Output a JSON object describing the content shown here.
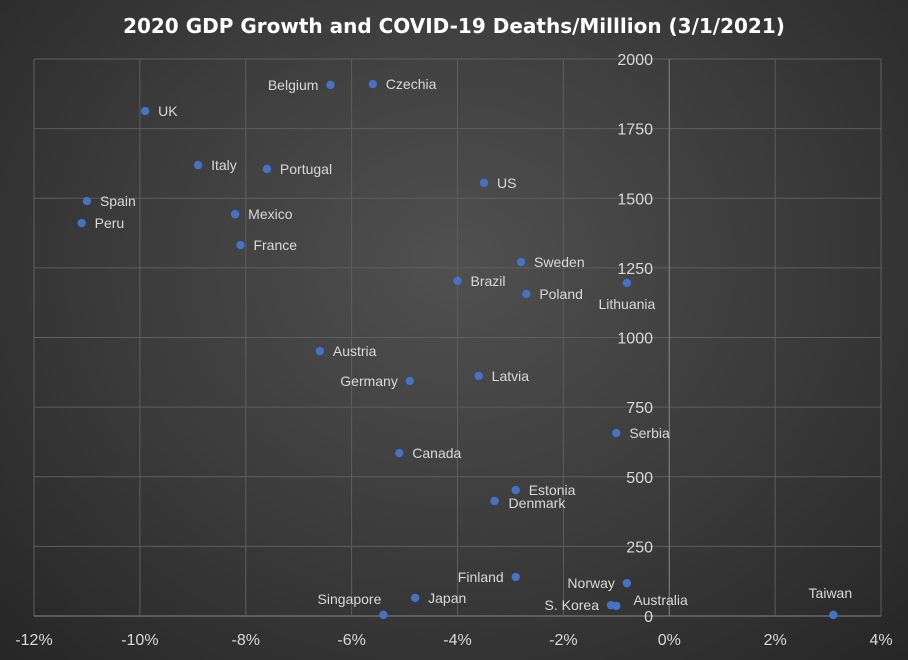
{
  "chart_data": {
    "type": "scatter",
    "title": "2020 GDP Growth and COVID-19 Deaths/Milllion (3/1/2021)",
    "xlabel": "",
    "ylabel": "",
    "xlim": [
      -12,
      4
    ],
    "ylim": [
      0,
      2000
    ],
    "x_ticks": [
      "-12%",
      "-10%",
      "-8%",
      "-6%",
      "-4%",
      "-2%",
      "0%",
      "2%",
      "4%"
    ],
    "y_ticks": [
      "0",
      "250",
      "500",
      "750",
      "1000",
      "1250",
      "1500",
      "1750",
      "2000"
    ],
    "grid": true,
    "marker_color": "#4472C4",
    "points": [
      {
        "label": "UK",
        "x": -9.9,
        "y": 1813
      },
      {
        "label": "Belgium",
        "x": -6.4,
        "y": 1907
      },
      {
        "label": "Czechia",
        "x": -5.6,
        "y": 1910
      },
      {
        "label": "Italy",
        "x": -8.9,
        "y": 1619
      },
      {
        "label": "Portugal",
        "x": -7.6,
        "y": 1605
      },
      {
        "label": "US",
        "x": -3.5,
        "y": 1555
      },
      {
        "label": "Spain",
        "x": -11.0,
        "y": 1490
      },
      {
        "label": "Peru",
        "x": -11.1,
        "y": 1411
      },
      {
        "label": "Mexico",
        "x": -8.2,
        "y": 1443
      },
      {
        "label": "France",
        "x": -8.1,
        "y": 1332
      },
      {
        "label": "Sweden",
        "x": -2.8,
        "y": 1271
      },
      {
        "label": "Brazil",
        "x": -4.0,
        "y": 1203
      },
      {
        "label": "Poland",
        "x": -2.7,
        "y": 1156
      },
      {
        "label": "Lithuania",
        "x": -0.8,
        "y": 1196
      },
      {
        "label": "Austria",
        "x": -6.6,
        "y": 951
      },
      {
        "label": "Germany",
        "x": -4.9,
        "y": 844
      },
      {
        "label": "Latvia",
        "x": -3.6,
        "y": 862
      },
      {
        "label": "Serbia",
        "x": -1.0,
        "y": 657
      },
      {
        "label": "Canada",
        "x": -5.1,
        "y": 585
      },
      {
        "label": "Estonia",
        "x": -2.9,
        "y": 452
      },
      {
        "label": "Denmark",
        "x": -3.3,
        "y": 413
      },
      {
        "label": "Finland",
        "x": -2.9,
        "y": 140
      },
      {
        "label": "Norway",
        "x": -0.8,
        "y": 118
      },
      {
        "label": "Singapore",
        "x": -5.4,
        "y": 4
      },
      {
        "label": "Japan",
        "x": -4.8,
        "y": 65
      },
      {
        "label": "S. Korea",
        "x": -1.1,
        "y": 39
      },
      {
        "label": "Australia",
        "x": -1.0,
        "y": 36
      },
      {
        "label": "Taiwan",
        "x": 3.1,
        "y": 4
      }
    ]
  }
}
